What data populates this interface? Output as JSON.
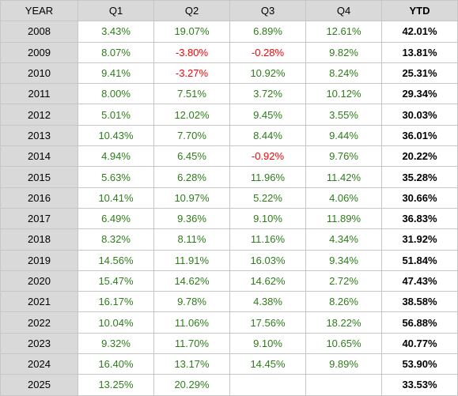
{
  "chart_data": {
    "type": "table",
    "columns": [
      "YEAR",
      "Q1",
      "Q2",
      "Q3",
      "Q4",
      "YTD"
    ],
    "rows": [
      {
        "year": "2008",
        "q1": "3.43%",
        "q2": "19.07%",
        "q3": "6.89%",
        "q4": "12.61%",
        "ytd": "42.01%"
      },
      {
        "year": "2009",
        "q1": "8.07%",
        "q2": "-3.80%",
        "q3": "-0.28%",
        "q4": "9.82%",
        "ytd": "13.81%"
      },
      {
        "year": "2010",
        "q1": "9.41%",
        "q2": "-3.27%",
        "q3": "10.92%",
        "q4": "8.24%",
        "ytd": "25.31%"
      },
      {
        "year": "2011",
        "q1": "8.00%",
        "q2": "7.51%",
        "q3": "3.72%",
        "q4": "10.12%",
        "ytd": "29.34%"
      },
      {
        "year": "2012",
        "q1": "5.01%",
        "q2": "12.02%",
        "q3": "9.45%",
        "q4": "3.55%",
        "ytd": "30.03%"
      },
      {
        "year": "2013",
        "q1": "10.43%",
        "q2": "7.70%",
        "q3": "8.44%",
        "q4": "9.44%",
        "ytd": "36.01%"
      },
      {
        "year": "2014",
        "q1": "4.94%",
        "q2": "6.45%",
        "q3": "-0.92%",
        "q4": "9.76%",
        "ytd": "20.22%"
      },
      {
        "year": "2015",
        "q1": "5.63%",
        "q2": "6.28%",
        "q3": "11.96%",
        "q4": "11.42%",
        "ytd": "35.28%"
      },
      {
        "year": "2016",
        "q1": "10.41%",
        "q2": "10.97%",
        "q3": "5.22%",
        "q4": "4.06%",
        "ytd": "30.66%"
      },
      {
        "year": "2017",
        "q1": "6.49%",
        "q2": "9.36%",
        "q3": "9.10%",
        "q4": "11.89%",
        "ytd": "36.83%"
      },
      {
        "year": "2018",
        "q1": "8.32%",
        "q2": "8.11%",
        "q3": "11.16%",
        "q4": "4.34%",
        "ytd": "31.92%"
      },
      {
        "year": "2019",
        "q1": "14.56%",
        "q2": "11.91%",
        "q3": "16.03%",
        "q4": "9.34%",
        "ytd": "51.84%"
      },
      {
        "year": "2020",
        "q1": "15.47%",
        "q2": "14.62%",
        "q3": "14.62%",
        "q4": "2.72%",
        "ytd": "47.43%"
      },
      {
        "year": "2021",
        "q1": "16.17%",
        "q2": "9.78%",
        "q3": "4.38%",
        "q4": "8.26%",
        "ytd": "38.58%"
      },
      {
        "year": "2022",
        "q1": "10.04%",
        "q2": "11.06%",
        "q3": "17.56%",
        "q4": "18.22%",
        "ytd": "56.88%"
      },
      {
        "year": "2023",
        "q1": "9.32%",
        "q2": "11.70%",
        "q3": "9.10%",
        "q4": "10.65%",
        "ytd": "40.77%"
      },
      {
        "year": "2024",
        "q1": "16.40%",
        "q2": "13.17%",
        "q3": "14.45%",
        "q4": "9.89%",
        "ytd": "53.90%"
      },
      {
        "year": "2025",
        "q1": "13.25%",
        "q2": "20.29%",
        "q3": "",
        "q4": "",
        "ytd": "33.53%"
      }
    ],
    "colors": {
      "header_bg": "#d9d9d9",
      "positive": "#2e7d1a",
      "negative": "#ff0000",
      "ytd": "#000000"
    }
  }
}
